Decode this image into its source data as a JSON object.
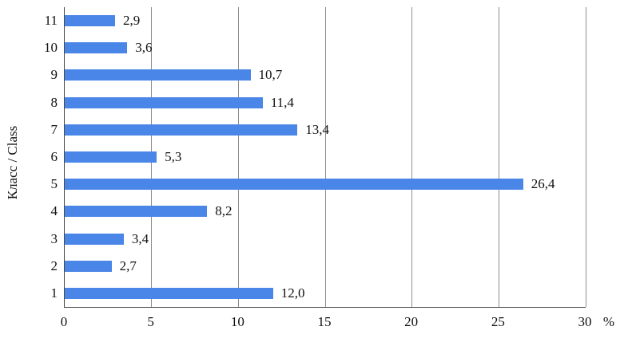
{
  "chart_data": {
    "type": "bar",
    "orientation": "horizontal",
    "ylabel": "Класс / Class",
    "xlabel": "%",
    "categories": [
      "11",
      "10",
      "9",
      "8",
      "7",
      "6",
      "5",
      "4",
      "3",
      "2",
      "1"
    ],
    "values": [
      2.9,
      3.6,
      10.7,
      11.4,
      13.4,
      5.3,
      26.4,
      8.2,
      3.4,
      2.7,
      12.0
    ],
    "value_labels": [
      "2,9",
      "3,6",
      "10,7",
      "11,4",
      "13,4",
      "5,3",
      "26,4",
      "8,2",
      "3,4",
      "2,7",
      "12,0"
    ],
    "xlim": [
      0,
      30
    ],
    "xticks": [
      0,
      5,
      10,
      15,
      20,
      25,
      30
    ],
    "xtick_labels": [
      "0",
      "5",
      "10",
      "15",
      "20",
      "25",
      "30"
    ],
    "grid": true,
    "legend": false,
    "bar_color": "#4a86e8",
    "grid_color": "#8e8e8e",
    "axis_color": "#4a4a4a",
    "text_color": "#111111",
    "background": "#ffffff"
  }
}
